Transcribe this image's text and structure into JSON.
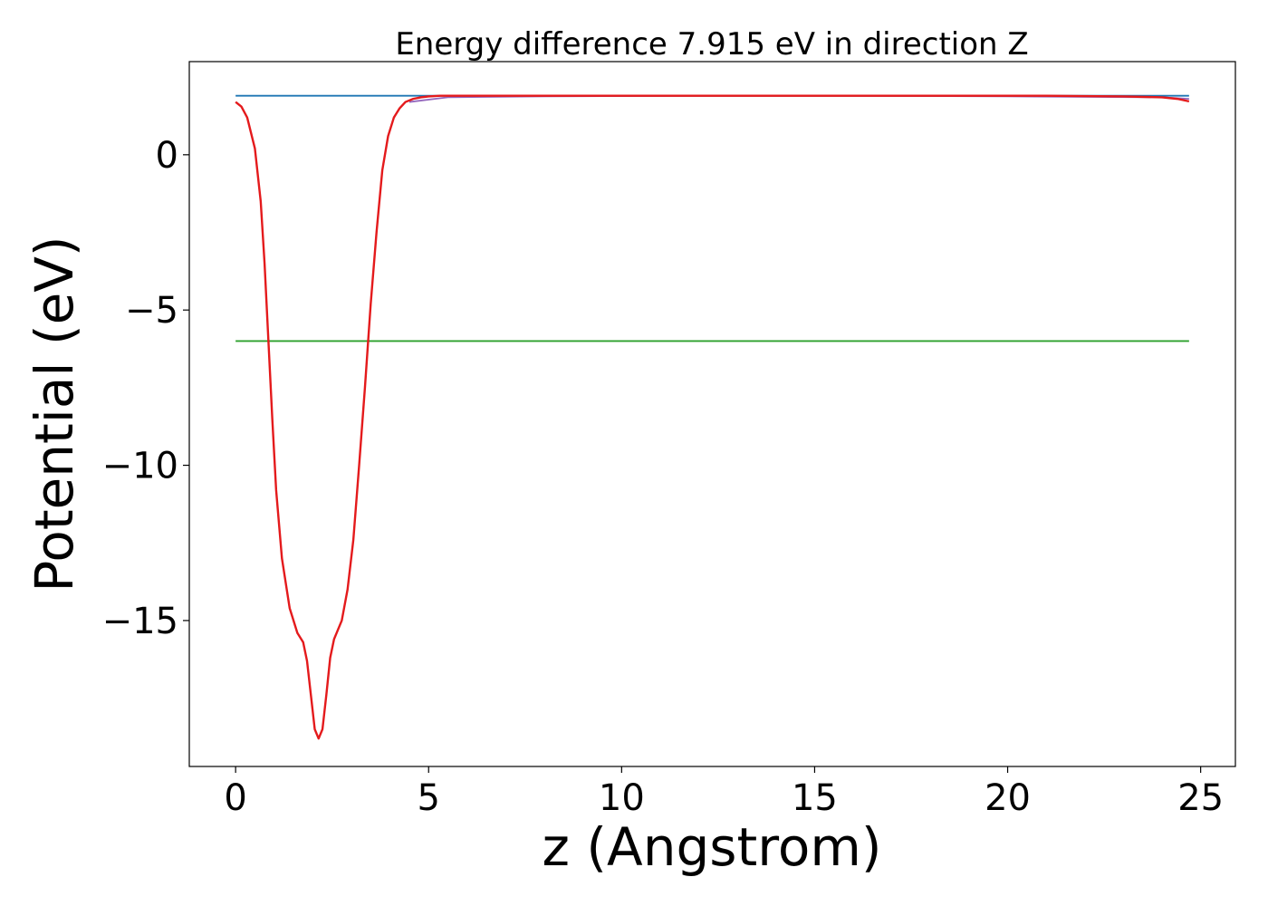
{
  "chart_data": {
    "type": "line",
    "title": "Energy difference 7.915 eV in direction Z",
    "xlabel": "z (Angstrom)",
    "ylabel": "Potential (eV)",
    "xlim": [
      -1.2,
      25.9
    ],
    "ylim": [
      -19.7,
      3.0
    ],
    "xticks": [
      0,
      5,
      10,
      15,
      20,
      25
    ],
    "xtick_labels": [
      "0",
      "5",
      "10",
      "15",
      "20",
      "25"
    ],
    "yticks": [
      0,
      -5,
      -10,
      -15
    ],
    "ytick_labels": [
      "0",
      "−5",
      "−10",
      "−15"
    ],
    "grid": false,
    "legend": "none",
    "series": [
      {
        "color": "#1f77b4",
        "x": [
          0,
          24.7
        ],
        "y": [
          1.9,
          1.9
        ]
      },
      {
        "color": "#2ca02c",
        "x": [
          0,
          24.7
        ],
        "y": [
          -6.0,
          -6.0
        ]
      },
      {
        "color": "#9467bd",
        "x": [
          4.5,
          5.5,
          8,
          12,
          16,
          20,
          24,
          24.7
        ],
        "y": [
          1.7,
          1.85,
          1.88,
          1.9,
          1.9,
          1.88,
          1.85,
          1.8
        ]
      },
      {
        "color": "#e41a1c",
        "x": [
          0,
          0.15,
          0.3,
          0.5,
          0.65,
          0.75,
          0.85,
          0.95,
          1.05,
          1.2,
          1.4,
          1.6,
          1.75,
          1.85,
          1.95,
          2.05,
          2.15,
          2.25,
          2.35,
          2.45,
          2.55,
          2.65,
          2.75,
          2.9,
          3.05,
          3.2,
          3.35,
          3.5,
          3.65,
          3.8,
          3.95,
          4.1,
          4.25,
          4.4,
          4.6,
          4.8,
          5.0,
          5.3,
          5.6,
          6.0,
          7.0,
          9.0,
          12.0,
          15.0,
          18.0,
          21.0,
          23.0,
          24.0,
          24.4,
          24.7
        ],
        "y": [
          1.7,
          1.55,
          1.2,
          0.2,
          -1.5,
          -3.5,
          -6.0,
          -8.5,
          -10.8,
          -13.0,
          -14.6,
          -15.4,
          -15.7,
          -16.3,
          -17.4,
          -18.5,
          -18.8,
          -18.5,
          -17.4,
          -16.2,
          -15.6,
          -15.3,
          -15.0,
          -14.0,
          -12.4,
          -10.0,
          -7.5,
          -4.8,
          -2.5,
          -0.5,
          0.6,
          1.2,
          1.5,
          1.7,
          1.8,
          1.85,
          1.88,
          1.9,
          1.9,
          1.9,
          1.9,
          1.9,
          1.9,
          1.9,
          1.9,
          1.9,
          1.88,
          1.85,
          1.8,
          1.72
        ]
      }
    ]
  }
}
